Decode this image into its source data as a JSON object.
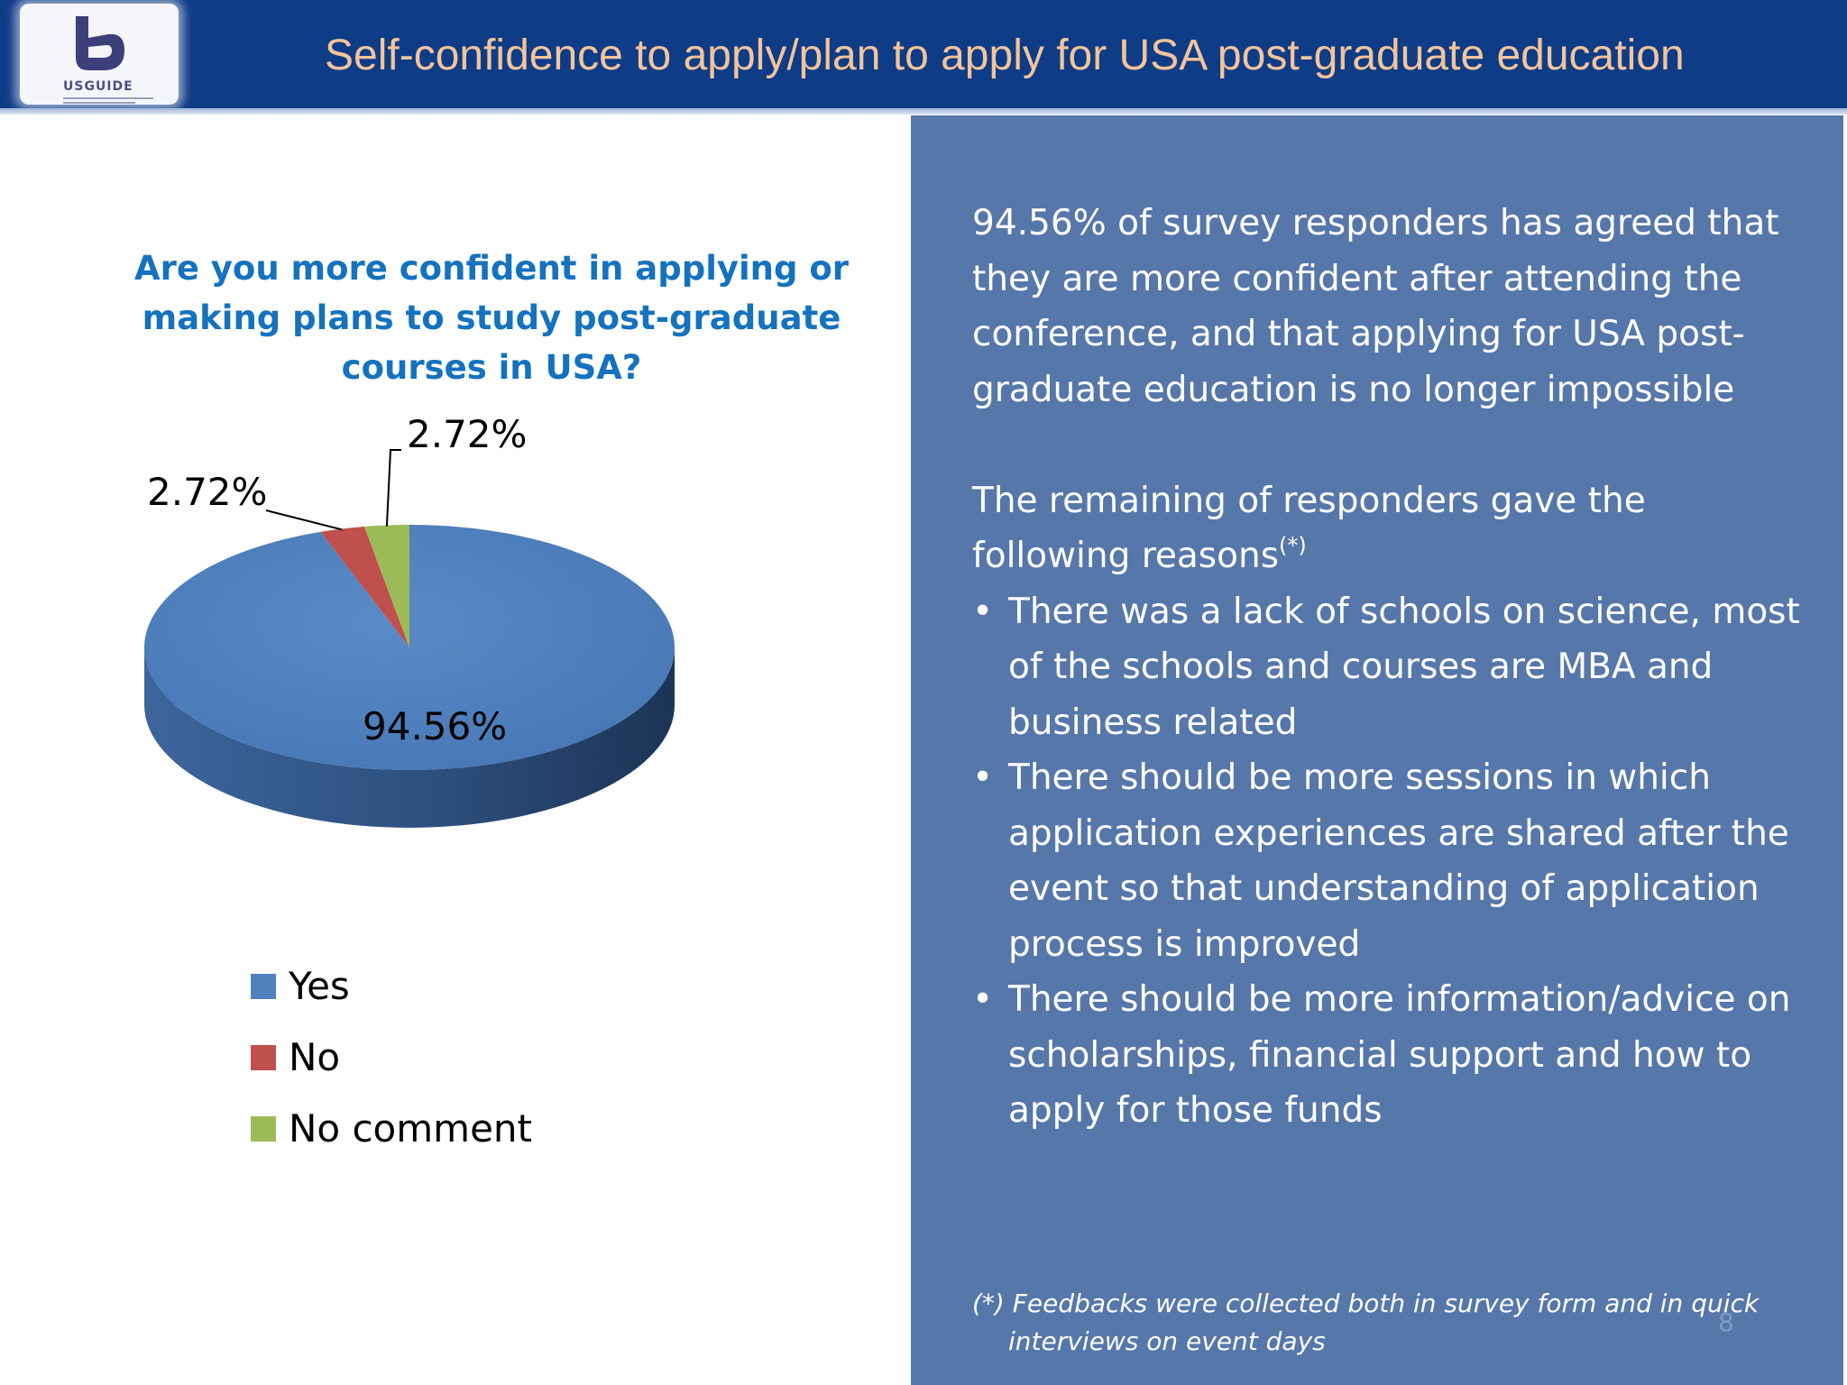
{
  "header": {
    "logo_text": "USGUIDE",
    "title": "Self-confidence to apply/plan to apply for USA post-graduate education"
  },
  "chart_data": {
    "type": "pie",
    "title": "Are you more confident in applying or making plans to study post-graduate courses in USA?",
    "categories": [
      "Yes",
      "No",
      "No comment"
    ],
    "values": [
      94.56,
      2.72,
      2.72
    ],
    "data_labels": [
      "94.56%",
      "2.72%",
      "2.72%"
    ],
    "colors": [
      "#4f81bd",
      "#c0504d",
      "#9bbb59"
    ],
    "legend_position": "bottom-left",
    "style": "3d"
  },
  "summary": {
    "paragraph1": "94.56% of survey responders has agreed that they are more confident after attending the conference, and that applying for USA post-graduate education is no longer impossible",
    "paragraph2": "The remaining of responders gave the following reasons",
    "paragraph2_mark": "(*)",
    "reasons": [
      "There was a lack of schools on science, most of the schools and courses are MBA and business related",
      "There should be more sessions in which application experiences are shared after the event  so that understanding of application process is improved",
      "There should be more information/advice on scholarships, financial support and how to apply for those funds"
    ],
    "bullet": "•",
    "footnote": "(*) Feedbacks were collected both in survey form and in quick interviews on event days"
  },
  "page_number": "8"
}
